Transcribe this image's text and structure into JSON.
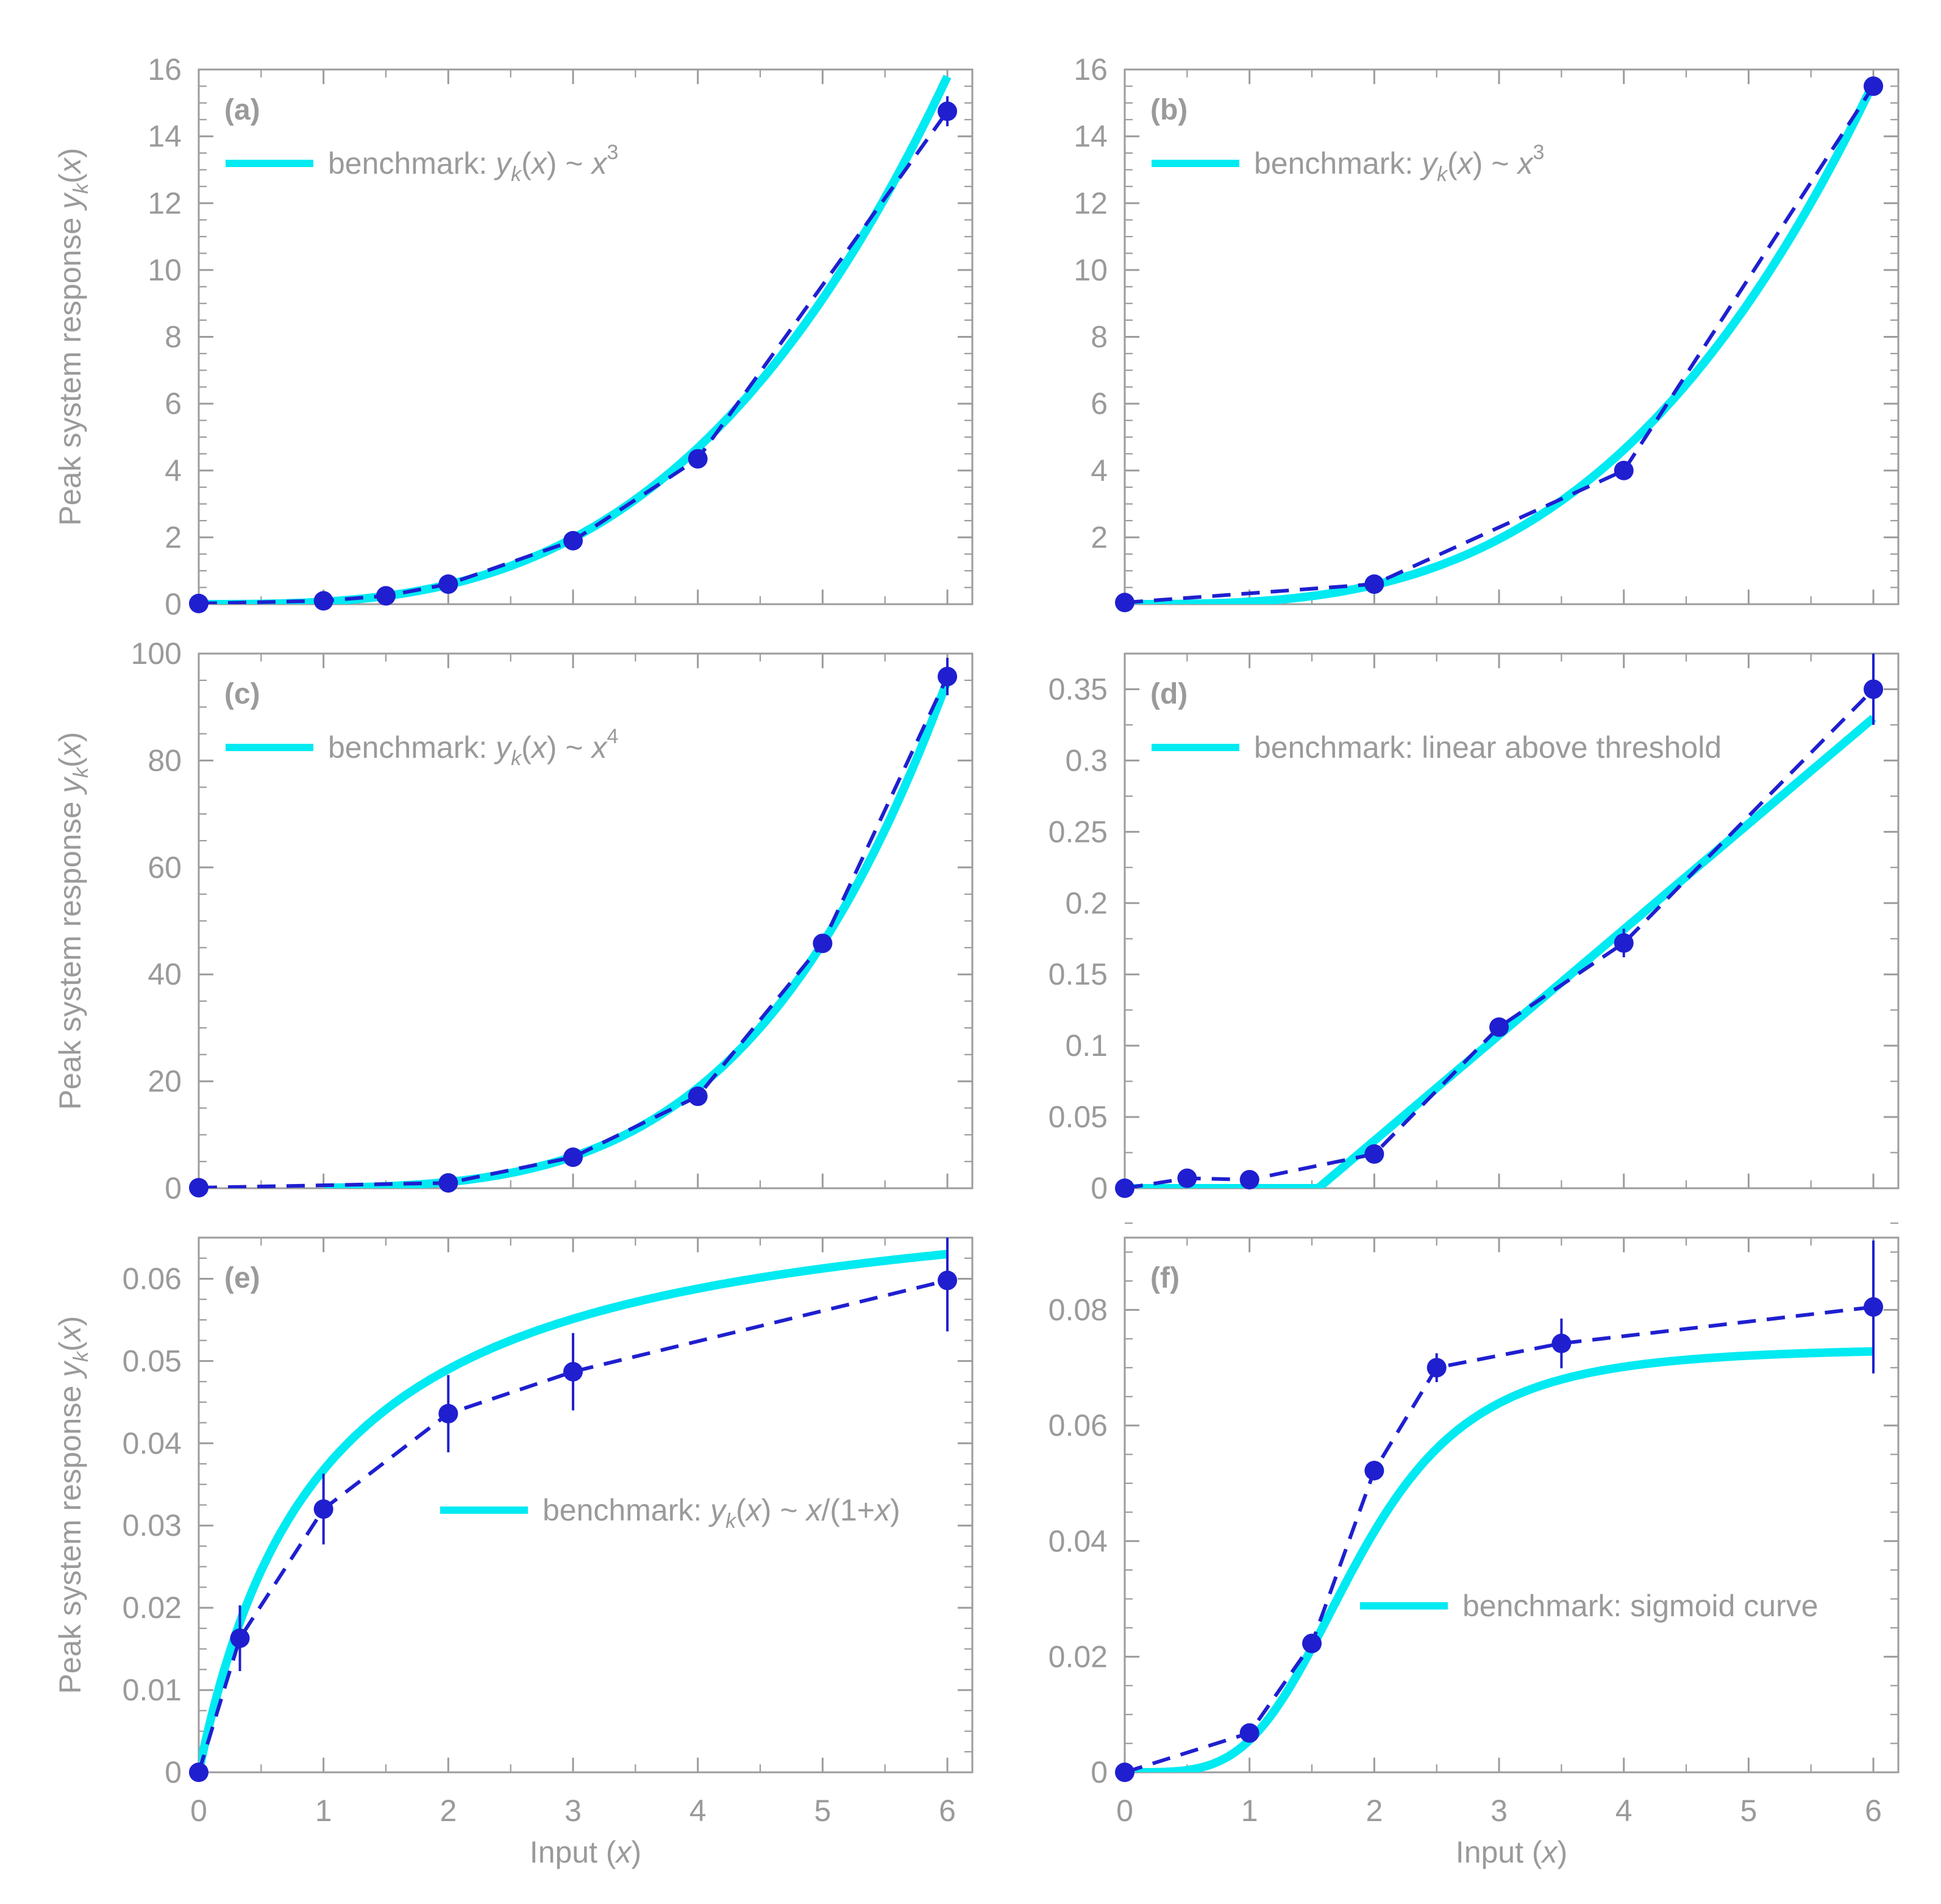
{
  "chart_data": [
    {
      "type": "line",
      "panel": "(a)",
      "xlabel": "",
      "ylabel": "Peak system response y_k(x)",
      "xlim": [
        0,
        6.2
      ],
      "ylim": [
        0,
        16
      ],
      "yticks": [
        0,
        2,
        4,
        6,
        8,
        10,
        12,
        14,
        16
      ],
      "ytick_labels": [
        "0",
        "2",
        "4",
        "6",
        "8",
        "10",
        "12",
        "14",
        "16"
      ],
      "y_minor": 0.5,
      "xticks": [],
      "xtick_labels": [],
      "legend": {
        "prefix": "benchmark: ",
        "formula_main": "y",
        "formula_sub": "k",
        "formula_tail": "(x) ~ x",
        "formula_sup": "3",
        "placement": "top-left"
      },
      "benchmark": {
        "kind": "power",
        "scale": 0.0731,
        "exponent": 3,
        "x_range": [
          0,
          6
        ]
      },
      "measured": {
        "x": [
          0,
          1,
          1.5,
          2,
          3,
          4,
          6
        ],
        "y": [
          0.02,
          0.1,
          0.25,
          0.6,
          1.9,
          4.35,
          14.75
        ],
        "err": [
          0.05,
          0.05,
          0.07,
          0.1,
          0.15,
          0.2,
          0.45
        ]
      }
    },
    {
      "type": "line",
      "panel": "(b)",
      "xlabel": "",
      "ylabel": "",
      "xlim": [
        0,
        6.2
      ],
      "ylim": [
        0,
        16
      ],
      "yticks": [
        2,
        4,
        6,
        8,
        10,
        12,
        14,
        16
      ],
      "ytick_labels": [
        "2",
        "4",
        "6",
        "8",
        "10",
        "12",
        "14",
        "16"
      ],
      "y_minor": 0.5,
      "xticks": [],
      "xtick_labels": [],
      "legend": {
        "prefix": "benchmark: ",
        "formula_main": "y",
        "formula_sub": "k",
        "formula_tail": "(x) ~ x",
        "formula_sup": "3",
        "placement": "top-left"
      },
      "benchmark": {
        "kind": "power",
        "scale": 0.0722,
        "exponent": 3,
        "x_range": [
          0,
          6
        ]
      },
      "measured": {
        "x": [
          0,
          2,
          4,
          6
        ],
        "y": [
          0.05,
          0.6,
          4.0,
          15.5
        ],
        "err": [
          0.05,
          0.1,
          0.15,
          0.25
        ]
      }
    },
    {
      "type": "line",
      "panel": "(c)",
      "xlabel": "",
      "ylabel": "Peak system response y_k(x)",
      "xlim": [
        0,
        6.2
      ],
      "ylim": [
        0,
        100
      ],
      "yticks": [
        0,
        20,
        40,
        60,
        80,
        100
      ],
      "ytick_labels": [
        "0",
        "20",
        "40",
        "60",
        "80",
        "100"
      ],
      "y_minor": 5,
      "xticks": [],
      "xtick_labels": [],
      "legend": {
        "prefix": "benchmark: ",
        "formula_main": "y",
        "formula_sub": "k",
        "formula_tail": "(x) ~ x",
        "formula_sup": "4",
        "placement": "top-left"
      },
      "benchmark": {
        "kind": "power",
        "scale": 0.0733,
        "exponent": 4,
        "x_range": [
          1,
          6
        ]
      },
      "measured": {
        "x": [
          0,
          2,
          3,
          4,
          5,
          6
        ],
        "y": [
          0.1,
          1.0,
          5.8,
          17.2,
          45.8,
          95.7
        ],
        "err": [
          0.3,
          0.4,
          0.6,
          0.8,
          1.2,
          3.5
        ]
      }
    },
    {
      "type": "line",
      "panel": "(d)",
      "xlabel": "",
      "ylabel": "",
      "xlim": [
        0,
        6.2
      ],
      "ylim": [
        0,
        0.375
      ],
      "yticks": [
        0,
        0.05,
        0.1,
        0.15,
        0.2,
        0.25,
        0.3,
        0.35
      ],
      "ytick_labels": [
        "0",
        "0.05",
        "0.1",
        "0.15",
        "0.2",
        "0.25",
        "0.3",
        "0.35"
      ],
      "y_minor": 0.025,
      "xticks": [],
      "xtick_labels": [],
      "legend": {
        "prefix": "benchmark: linear above threshold",
        "formula_main": "",
        "formula_sub": "",
        "formula_tail": "",
        "formula_sup": "",
        "placement": "top-left"
      },
      "benchmark": {
        "kind": "threshold",
        "threshold": 1.55,
        "slope": 0.0741,
        "x_range": [
          0,
          6
        ]
      },
      "measured": {
        "x": [
          0,
          0.5,
          1,
          2,
          3,
          4,
          6
        ],
        "y": [
          0.0,
          0.007,
          0.006,
          0.024,
          0.113,
          0.172,
          0.35
        ],
        "err": [
          0.003,
          0.003,
          0.003,
          0.004,
          0.005,
          0.01,
          0.025
        ]
      }
    },
    {
      "type": "line",
      "panel": "(e)",
      "xlabel": "Input (x)",
      "ylabel": "Peak system response y_k(x)",
      "xlim": [
        0,
        6.2
      ],
      "ylim": [
        0,
        0.065
      ],
      "yticks": [
        0,
        0.01,
        0.02,
        0.03,
        0.04,
        0.05,
        0.06
      ],
      "ytick_labels": [
        "0",
        "0.01",
        "0.02",
        "0.03",
        "0.04",
        "0.05",
        "0.06"
      ],
      "y_minor": 0.0025,
      "xticks": [
        0,
        1,
        2,
        3,
        4,
        5,
        6
      ],
      "xtick_labels": [
        "0",
        "1",
        "2",
        "3",
        "4",
        "5",
        "6"
      ],
      "legend": {
        "prefix": "benchmark: ",
        "formula_main": "y",
        "formula_sub": "k",
        "formula_tail": "(x) ~ x/(1+x)",
        "formula_sup": "",
        "placement": "center-right"
      },
      "benchmark": {
        "kind": "saturating",
        "scale": 0.0735,
        "x_range": [
          0,
          6
        ]
      },
      "measured": {
        "x": [
          0,
          0.33,
          1,
          2,
          3,
          6
        ],
        "y": [
          0.0,
          0.0163,
          0.032,
          0.0436,
          0.0487,
          0.0598
        ],
        "err": [
          0.0003,
          0.004,
          0.0043,
          0.0047,
          0.0047,
          0.0062
        ]
      }
    },
    {
      "type": "line",
      "panel": "(f)",
      "xlabel": "Input (x)",
      "ylabel": "",
      "xlim": [
        0,
        6.2
      ],
      "ylim": [
        0,
        0.0925
      ],
      "yticks": [
        0,
        0.02,
        0.04,
        0.06,
        0.08
      ],
      "ytick_labels": [
        "0",
        "0.02",
        "0.04",
        "0.06",
        "0.08"
      ],
      "y_minor": 0.005,
      "xticks": [
        0,
        1,
        2,
        3,
        4,
        5,
        6
      ],
      "xtick_labels": [
        "0",
        "1",
        "2",
        "3",
        "4",
        "5",
        "6"
      ],
      "legend": {
        "prefix": "benchmark: sigmoid curve",
        "formula_main": "",
        "formula_sub": "",
        "formula_tail": "",
        "formula_sup": "",
        "placement": "center-right"
      },
      "benchmark": {
        "kind": "sigmoid",
        "amplitude": 0.0735,
        "n": 4,
        "half": 1.87,
        "x_range": [
          0,
          6
        ]
      },
      "measured": {
        "x": [
          0,
          1,
          1.5,
          2,
          2.5,
          3.5,
          6
        ],
        "y": [
          0.0,
          0.0068,
          0.0223,
          0.0522,
          0.07,
          0.0742,
          0.0805
        ],
        "err": [
          0.0005,
          0.0008,
          0.0012,
          0.0017,
          0.0025,
          0.0043,
          0.0115
        ]
      }
    }
  ]
}
